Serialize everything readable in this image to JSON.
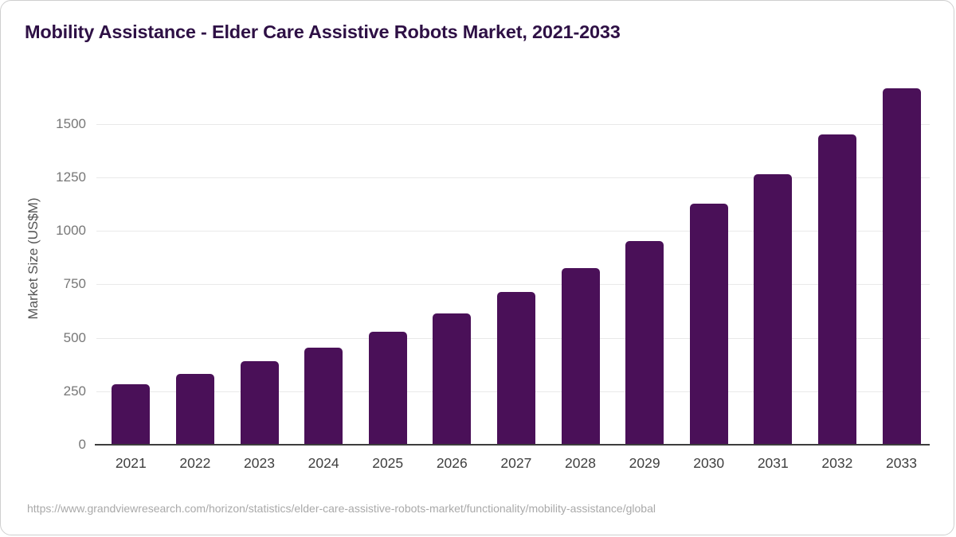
{
  "card": {
    "title": "Mobility Assistance - Elder Care Assistive Robots Market, 2021-2033",
    "source_url": "https://www.grandviewresearch.com/horizon/statistics/elder-care-assistive-robots-market/functionality/mobility-assistance/global"
  },
  "chart_data": {
    "type": "bar",
    "title": "Mobility Assistance - Elder Care Assistive Robots Market, 2021-2033",
    "categories": [
      "2021",
      "2022",
      "2023",
      "2024",
      "2025",
      "2026",
      "2027",
      "2028",
      "2029",
      "2030",
      "2031",
      "2032",
      "2033"
    ],
    "values": [
      283,
      331,
      390,
      452,
      528,
      612,
      713,
      826,
      951,
      1125,
      1263,
      1450,
      1665
    ],
    "xlabel": "",
    "ylabel": "Market Size (US$M)",
    "ylim": [
      0,
      1700
    ],
    "yticks": [
      0,
      250,
      500,
      750,
      1000,
      1250,
      1500
    ],
    "grid": true,
    "legend": false,
    "bar_color": "#4a1058"
  },
  "colors": {
    "bar": "#4a1058",
    "title_text": "#2e1045",
    "gridline": "#e9e9e9",
    "axis_line": "#3d3d3d",
    "y_tick_text": "#777777",
    "y_axis_label_text": "#555555",
    "x_tick_text": "#3f3f3f",
    "source_text": "#a9a9a9",
    "background": "#ffffff"
  }
}
